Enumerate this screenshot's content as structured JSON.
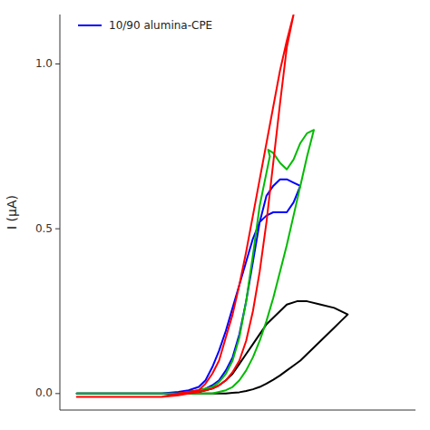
{
  "chart_data": {
    "type": "line",
    "ylabel": "I (μA)",
    "xlim": [
      -0.05,
      1.0
    ],
    "ylim": [
      -0.05,
      1.15
    ],
    "yticks": [
      {
        "value": 0.0,
        "label": "0.0"
      },
      0.5,
      {
        "value": 1.0,
        "label": "1.0"
      }
    ],
    "tick_labels": "y",
    "grid": false,
    "legend": "upper left",
    "series": [
      {
        "color": "#000000",
        "x": [
          0.0,
          0.05,
          0.1,
          0.15,
          0.2,
          0.25,
          0.3,
          0.33,
          0.36,
          0.38,
          0.4,
          0.42,
          0.44,
          0.46,
          0.48,
          0.5,
          0.52,
          0.54,
          0.56,
          0.58,
          0.6,
          0.62,
          0.65,
          0.68,
          0.72,
          0.76,
          0.8,
          0.8,
          0.78,
          0.76,
          0.74,
          0.72,
          0.7,
          0.68,
          0.66,
          0.64,
          0.62,
          0.6,
          0.58,
          0.56,
          0.54,
          0.52,
          0.5,
          0.48,
          0.46,
          0.44,
          0.42,
          0.4,
          0.38,
          0.36,
          0.33,
          0.3,
          0.25,
          0.2,
          0.15,
          0.1,
          0.05,
          0.0
        ],
        "values": [
          0.0,
          0.0,
          0.0,
          0.0,
          0.0,
          0.0,
          0.0,
          0.0,
          0.005,
          0.01,
          0.015,
          0.025,
          0.04,
          0.06,
          0.09,
          0.12,
          0.15,
          0.18,
          0.21,
          0.23,
          0.25,
          0.27,
          0.28,
          0.28,
          0.27,
          0.26,
          0.24,
          0.24,
          0.22,
          0.2,
          0.18,
          0.16,
          0.14,
          0.12,
          0.1,
          0.085,
          0.07,
          0.055,
          0.042,
          0.03,
          0.02,
          0.013,
          0.008,
          0.004,
          0.002,
          0.0,
          0.0,
          0.0,
          0.0,
          0.0,
          0.0,
          0.0,
          0.0,
          0.0,
          0.0,
          0.0,
          0.0,
          0.0
        ]
      },
      {
        "name": "10/90 alumina-CPE",
        "color": "#0000ff",
        "x": [
          0.0,
          0.05,
          0.1,
          0.15,
          0.2,
          0.25,
          0.3,
          0.33,
          0.36,
          0.38,
          0.4,
          0.42,
          0.44,
          0.46,
          0.48,
          0.5,
          0.52,
          0.54,
          0.56,
          0.58,
          0.6,
          0.62,
          0.64,
          0.66,
          0.66,
          0.64,
          0.62,
          0.6,
          0.58,
          0.56,
          0.54,
          0.52,
          0.5,
          0.48,
          0.46,
          0.44,
          0.42,
          0.4,
          0.38,
          0.36,
          0.33,
          0.3,
          0.25,
          0.2,
          0.15,
          0.1,
          0.05,
          0.0
        ],
        "values": [
          0.0,
          0.0,
          0.0,
          0.0,
          0.0,
          0.0,
          0.0,
          0.005,
          0.01,
          0.015,
          0.025,
          0.04,
          0.07,
          0.11,
          0.18,
          0.28,
          0.4,
          0.52,
          0.6,
          0.63,
          0.65,
          0.65,
          0.64,
          0.63,
          0.63,
          0.58,
          0.55,
          0.55,
          0.55,
          0.54,
          0.52,
          0.47,
          0.4,
          0.33,
          0.26,
          0.19,
          0.13,
          0.08,
          0.04,
          0.02,
          0.01,
          0.005,
          0.0,
          0.0,
          0.0,
          0.0,
          0.0,
          0.0
        ]
      },
      {
        "color": "#00bb00",
        "x": [
          0.0,
          0.05,
          0.1,
          0.15,
          0.2,
          0.25,
          0.3,
          0.33,
          0.36,
          0.38,
          0.4,
          0.42,
          0.44,
          0.46,
          0.48,
          0.5,
          0.52,
          0.54,
          0.56,
          0.57,
          0.565,
          0.58,
          0.6,
          0.62,
          0.64,
          0.66,
          0.68,
          0.7,
          0.7,
          0.68,
          0.66,
          0.64,
          0.62,
          0.6,
          0.58,
          0.56,
          0.54,
          0.52,
          0.5,
          0.48,
          0.46,
          0.44,
          0.42,
          0.4,
          0.38,
          0.35,
          0.32,
          0.3,
          0.25,
          0.2,
          0.15,
          0.1,
          0.05,
          0.0
        ],
        "values": [
          0.0,
          0.0,
          0.0,
          0.0,
          0.0,
          0.0,
          0.0,
          0.005,
          0.01,
          0.015,
          0.02,
          0.035,
          0.06,
          0.1,
          0.17,
          0.28,
          0.42,
          0.57,
          0.67,
          0.72,
          0.74,
          0.73,
          0.7,
          0.68,
          0.71,
          0.76,
          0.79,
          0.8,
          0.8,
          0.72,
          0.63,
          0.54,
          0.45,
          0.37,
          0.29,
          0.22,
          0.16,
          0.11,
          0.07,
          0.04,
          0.02,
          0.01,
          0.005,
          0.0,
          0.0,
          0.0,
          0.0,
          0.0,
          0.0,
          0.0,
          0.0,
          0.0,
          0.0,
          0.0
        ]
      },
      {
        "color": "#ff0000",
        "x": [
          0.0,
          0.05,
          0.1,
          0.15,
          0.2,
          0.25,
          0.3,
          0.33,
          0.36,
          0.38,
          0.4,
          0.42,
          0.44,
          0.46,
          0.48,
          0.5,
          0.52,
          0.54,
          0.56,
          0.58,
          0.6,
          0.62,
          0.64,
          0.64,
          0.62,
          0.6,
          0.58,
          0.56,
          0.54,
          0.52,
          0.5,
          0.48,
          0.46,
          0.44,
          0.42,
          0.4,
          0.38,
          0.36,
          0.33,
          0.3,
          0.25,
          0.2,
          0.15,
          0.1,
          0.05,
          0.0
        ],
        "values": [
          -0.01,
          -0.01,
          -0.01,
          -0.01,
          -0.01,
          -0.01,
          -0.005,
          0.0,
          0.005,
          0.01,
          0.015,
          0.025,
          0.04,
          0.065,
          0.1,
          0.16,
          0.25,
          0.37,
          0.52,
          0.7,
          0.88,
          1.05,
          1.15,
          1.15,
          1.07,
          0.98,
          0.87,
          0.76,
          0.65,
          0.54,
          0.43,
          0.33,
          0.24,
          0.17,
          0.1,
          0.06,
          0.03,
          0.01,
          0.005,
          0.0,
          -0.01,
          -0.01,
          -0.01,
          -0.01,
          -0.01,
          -0.01
        ]
      }
    ]
  }
}
